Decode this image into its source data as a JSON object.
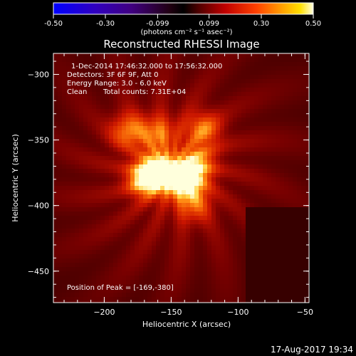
{
  "colorbar": {
    "ticks": [
      {
        "value": -0.5,
        "label": "-0.50"
      },
      {
        "value": -0.3,
        "label": "-0.30"
      },
      {
        "value": -0.099,
        "label": "-0.099"
      },
      {
        "value": 0.099,
        "label": "0.099"
      },
      {
        "value": 0.3,
        "label": "0.30"
      },
      {
        "value": 0.5,
        "label": "0.50"
      }
    ],
    "range": [
      -0.5,
      0.5
    ],
    "unit_label": "(photons cm⁻² s⁻¹ asec⁻²)"
  },
  "chart_data": {
    "type": "heatmap",
    "title": "Reconstructed RHESSI Image",
    "xlabel": "Heliocentric X (arcsec)",
    "ylabel": "Heliocentric Y (arcsec)",
    "xlim": [
      -238,
      -47
    ],
    "ylim": [
      -474,
      -284
    ],
    "x_ticks": [
      {
        "value": -200,
        "label": "−200"
      },
      {
        "value": -150,
        "label": "−150"
      },
      {
        "value": -100,
        "label": "−100"
      },
      {
        "value": -50,
        "label": "−50"
      }
    ],
    "y_ticks": [
      {
        "value": -300,
        "label": "−300"
      },
      {
        "value": -350,
        "label": "−350"
      },
      {
        "value": -400,
        "label": "−400"
      },
      {
        "value": -450,
        "label": "−450"
      }
    ],
    "sources": [
      {
        "x": -169,
        "y": -380,
        "peak": 1.0
      },
      {
        "x": -160,
        "y": -372,
        "peak": 0.75
      },
      {
        "x": -148,
        "y": -378,
        "peak": 0.7
      },
      {
        "x": -137,
        "y": -383,
        "peak": 0.75
      },
      {
        "x": -131,
        "y": -368,
        "peak": 0.72
      },
      {
        "x": -126,
        "y": -342,
        "peak": 0.6
      },
      {
        "x": -160,
        "y": -345,
        "peak": 0.55
      },
      {
        "x": -182,
        "y": -343,
        "peak": 0.6
      },
      {
        "x": -133,
        "y": -400,
        "peak": 0.45
      }
    ],
    "annotations": {
      "time_range": "1-Dec-2014 17:46:32.000 to 17:56:32.000",
      "detectors": "Detectors: 3F 6F 9F, Att 0",
      "energy": "Energy Range: 3.0 - 6.0 keV",
      "method": "Clean",
      "counts": "Total counts: 7.31E+04",
      "peak": "Position of Peak = [-169,-380]"
    },
    "grid": false
  },
  "footer": {
    "timestamp": "17-Aug-2017 19:34"
  }
}
